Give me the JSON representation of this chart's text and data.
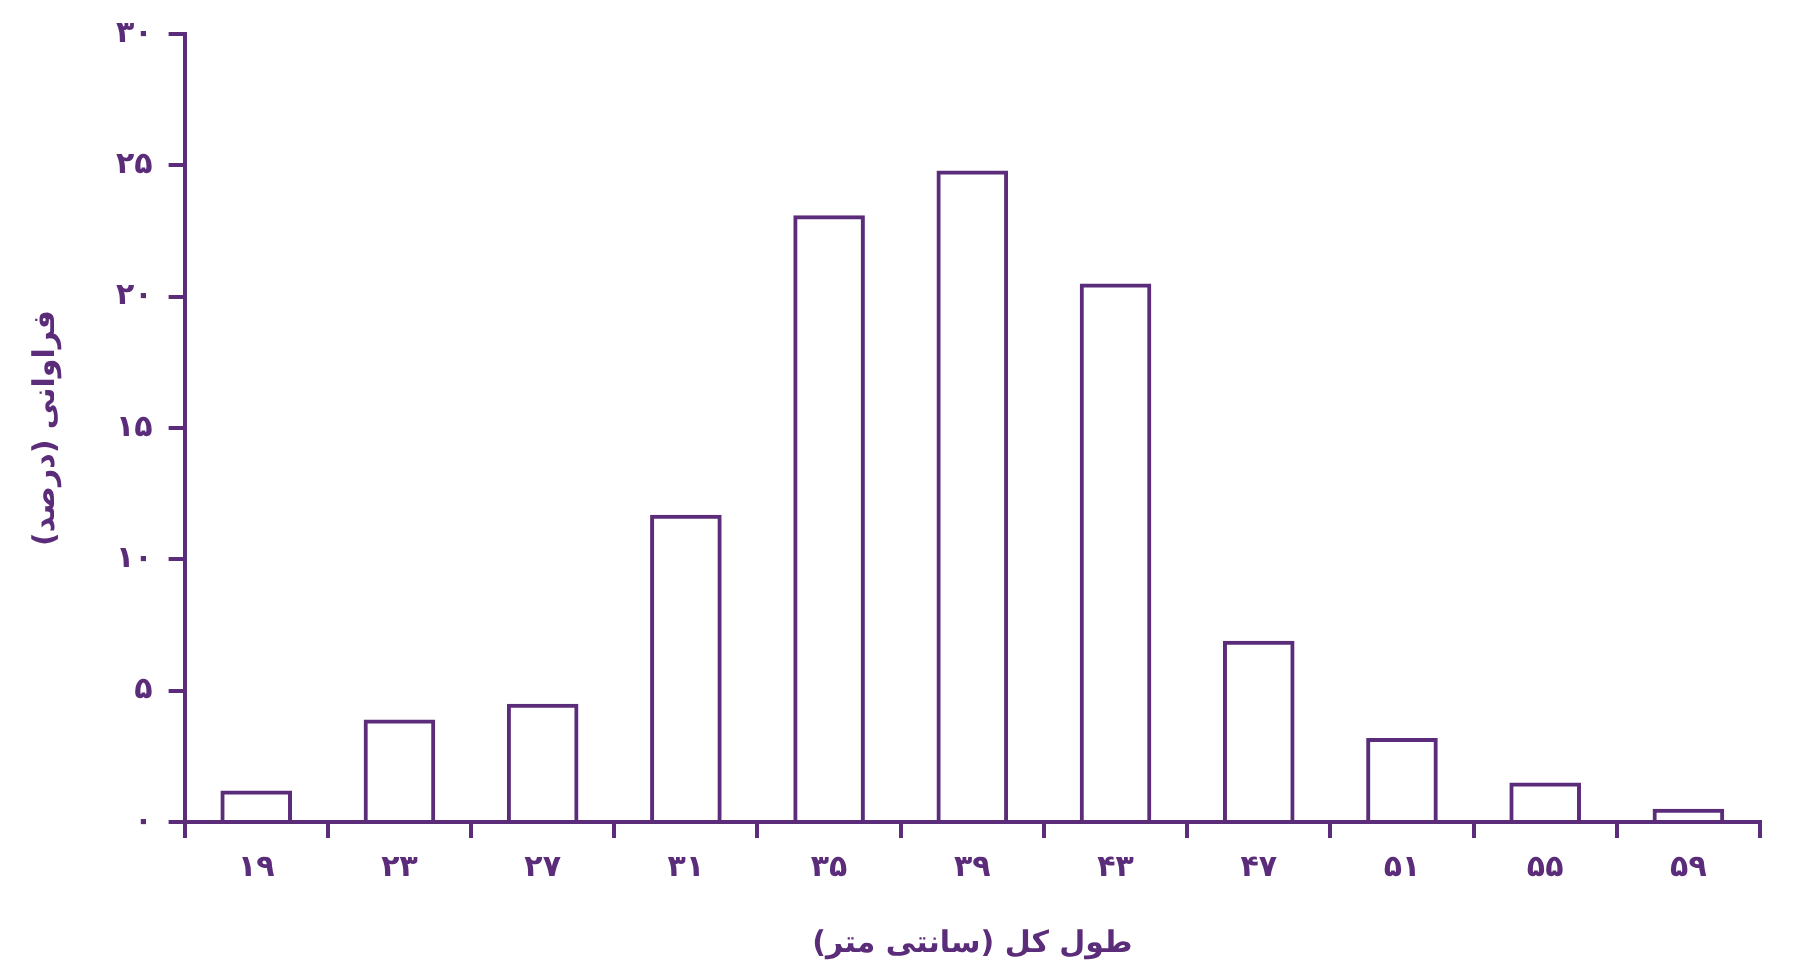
{
  "chart_data": {
    "type": "bar",
    "xlabel": "طول کل (سانتی متر)",
    "ylabel": "فراوانی (درصد)",
    "categories": [
      "۱۹",
      "۲۳",
      "۲۷",
      "۳۱",
      "۳۵",
      "۳۹",
      "۴۳",
      "۴۷",
      "۵۱",
      "۵۵",
      "۵۹"
    ],
    "values": [
      1.2,
      3.9,
      4.5,
      11.7,
      23.1,
      24.8,
      20.5,
      6.9,
      3.2,
      1.5,
      0.5
    ],
    "color": "#5b2c7a",
    "ylim": [
      0,
      30
    ],
    "yticks": [
      {
        "value": 0,
        "label": "۰"
      },
      {
        "value": 5,
        "label": "۵"
      },
      {
        "value": 10,
        "label": "۱۰"
      },
      {
        "value": 15,
        "label": "۱۵"
      },
      {
        "value": 20,
        "label": "۲۰"
      },
      {
        "value": 25,
        "label": "۲۵"
      },
      {
        "value": 30,
        "label": "۳۰"
      }
    ],
    "grid": false,
    "legend": false
  }
}
